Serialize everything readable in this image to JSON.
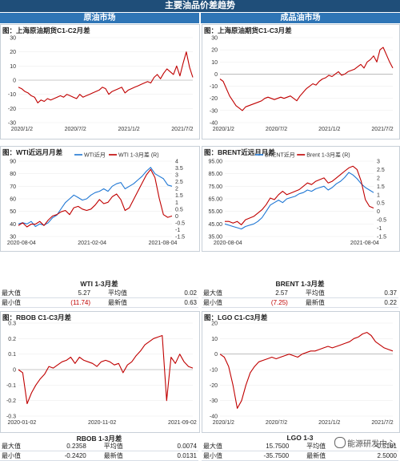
{
  "header": {
    "title": "主要油品价差趋势"
  },
  "sections": {
    "crude": "原油市场",
    "products": "成品油市场"
  },
  "colors": {
    "red": "#c00000",
    "blue": "#1f77d4"
  },
  "chart_data": [
    {
      "id": "sc",
      "type": "line",
      "title": "图：上海原油期货C1-C2月差",
      "xticks": [
        "2020/1/2",
        "2020/7/2",
        "2021/1/2",
        "2021/7/2"
      ],
      "ylim": [
        -30,
        30
      ],
      "yticks": [
        -30,
        -20,
        -10,
        0,
        10,
        20,
        30
      ],
      "series": [
        {
          "color": "#c00000",
          "values": [
            -5,
            -6,
            -8,
            -9,
            -11,
            -12,
            -16,
            -14,
            -15,
            -13,
            -14,
            -13,
            -12,
            -11,
            -12,
            -10,
            -11,
            -12,
            -13,
            -10,
            -12,
            -11,
            -10,
            -9,
            -8,
            -7,
            -5,
            -6,
            -10,
            -8,
            -7,
            -6,
            -5,
            -9,
            -7,
            -6,
            -5,
            -4,
            -3,
            -2,
            -1,
            -2,
            2,
            4,
            1,
            5,
            8,
            6,
            4,
            10,
            3,
            12,
            20,
            9,
            2
          ]
        }
      ]
    },
    {
      "id": "mogas",
      "type": "line",
      "title": "图：上海原油期货C1-C3月差",
      "xticks": [
        "2020/1/2",
        "2020/7/2",
        "2021/1/2",
        "2021/7/2"
      ],
      "ylim": [
        -40,
        30
      ],
      "yticks": [
        -40,
        -30,
        -20,
        -10,
        0,
        10,
        20,
        30
      ],
      "series": [
        {
          "color": "#c00000",
          "values": [
            -4,
            -6,
            -12,
            -18,
            -22,
            -26,
            -28,
            -30,
            -27,
            -26,
            -25,
            -24,
            -23,
            -22,
            -20,
            -19,
            -20,
            -21,
            -20,
            -19,
            -20,
            -19,
            -18,
            -20,
            -22,
            -18,
            -15,
            -12,
            -10,
            -8,
            -9,
            -6,
            -4,
            -3,
            -1,
            -2,
            0,
            2,
            -1,
            0,
            2,
            3,
            4,
            6,
            8,
            5,
            10,
            12,
            15,
            10,
            20,
            22,
            16,
            10,
            5
          ]
        }
      ]
    },
    {
      "id": "wti",
      "type": "line",
      "title": "图：WTI近远月月差",
      "legend": [
        "WTI近月",
        "WTI 1-3月差 (R)"
      ],
      "xticks": [
        "2020-08-04",
        "2021-02-04",
        "2021-08-04"
      ],
      "ylim": [
        30,
        90
      ],
      "yticks": [
        30,
        40,
        50,
        60,
        70,
        80,
        90
      ],
      "ylim_right": [
        -1.5,
        4
      ],
      "yticks_right": [
        "4",
        "3.5",
        "3",
        "2.5",
        "2",
        "1.5",
        "1",
        "0.5",
        "0",
        "-0.5",
        "-1",
        "-1.5"
      ],
      "series": [
        {
          "name": "WTI近月",
          "color": "#1f77d4",
          "axis": "left",
          "values": [
            40,
            41,
            40,
            42,
            38,
            40,
            39,
            41,
            45,
            47,
            52,
            57,
            60,
            63,
            61,
            59,
            60,
            63,
            65,
            66,
            68,
            66,
            70,
            72,
            73,
            68,
            70,
            72,
            75,
            78,
            82,
            85,
            80,
            78,
            76,
            71,
            70
          ]
        },
        {
          "name": "WTI 1-3月差 (R)",
          "color": "#c00000",
          "axis": "right",
          "values": [
            -0.7,
            -0.5,
            -0.8,
            -0.6,
            -0.6,
            -0.4,
            -0.7,
            -0.3,
            0.0,
            0.1,
            0.3,
            0.4,
            0.1,
            0.6,
            0.7,
            0.5,
            0.4,
            0.5,
            0.8,
            1.2,
            0.9,
            1.0,
            1.4,
            1.6,
            1.2,
            0.4,
            0.6,
            1.2,
            1.8,
            2.4,
            3.0,
            3.4,
            2.8,
            1.3,
            0.1,
            -0.1,
            0.0
          ]
        }
      ]
    },
    {
      "id": "brent",
      "type": "line",
      "title": "图：BRENT近远月月差",
      "legend": [
        "BRENT近月",
        "Brent 1-3月差 (R)"
      ],
      "xticks": [
        "2020-08-04",
        "2021-08-04"
      ],
      "ylim": [
        35,
        95
      ],
      "yticks": [
        "95.00",
        "85.00",
        "75.00",
        "65.00",
        "55.00",
        "45.00",
        "35.00"
      ],
      "ylim_right": [
        -1.5,
        3
      ],
      "yticks_right": [
        "3",
        "2.5",
        "2",
        "1.5",
        "1",
        "0.5",
        "0",
        "-0.5",
        "-1",
        "-1.5"
      ],
      "series": [
        {
          "name": "BRENT近月",
          "color": "#1f77d4",
          "axis": "left",
          "values": [
            45,
            44,
            43,
            42,
            41,
            43,
            44,
            45,
            47,
            50,
            55,
            60,
            62,
            64,
            62,
            65,
            66,
            67,
            69,
            70,
            72,
            71,
            73,
            74,
            75,
            72,
            74,
            77,
            79,
            82,
            86,
            84,
            81,
            77,
            74,
            72,
            70
          ]
        },
        {
          "name": "Brent 1-3月差 (R)",
          "color": "#c00000",
          "axis": "right",
          "values": [
            -0.6,
            -0.6,
            -0.7,
            -0.6,
            -0.8,
            -0.5,
            -0.4,
            -0.3,
            -0.1,
            0.1,
            0.4,
            0.8,
            0.7,
            1.0,
            1.2,
            1.0,
            1.1,
            1.2,
            1.3,
            1.5,
            1.7,
            1.6,
            1.8,
            1.9,
            2.0,
            1.7,
            1.8,
            2.0,
            2.2,
            2.4,
            2.6,
            2.7,
            2.5,
            1.8,
            0.7,
            0.3,
            0.2
          ]
        }
      ]
    },
    {
      "id": "rbob",
      "type": "line",
      "title": "图：RBOB C1-C3月差",
      "xticks": [
        "2020-01-02",
        "2020-11-02",
        "2021-09-02"
      ],
      "ylim": [
        -0.3,
        0.3
      ],
      "yticks": [
        "0.3",
        "0.2",
        "0.1",
        "0",
        "-0.1",
        "-0.2",
        "-0.3"
      ],
      "series": [
        {
          "color": "#c00000",
          "values": [
            0.0,
            -0.02,
            -0.22,
            -0.15,
            -0.1,
            -0.06,
            -0.03,
            0.02,
            0.01,
            0.03,
            0.05,
            0.06,
            0.08,
            0.04,
            0.08,
            0.06,
            0.05,
            0.04,
            0.02,
            0.05,
            0.06,
            0.05,
            0.03,
            0.04,
            -0.02,
            0.03,
            0.05,
            0.09,
            0.12,
            0.16,
            0.18,
            0.2,
            0.21,
            0.22,
            -0.2,
            0.08,
            0.04,
            0.1,
            0.05,
            0.02,
            0.01
          ]
        }
      ]
    },
    {
      "id": "lgo",
      "type": "line",
      "title": "图：LGO C1-C3月差",
      "xticks": [
        "2020/1/2",
        "2020/7/2",
        "2021/1/2",
        "2021/7/2"
      ],
      "ylim": [
        -40,
        20
      ],
      "yticks": [
        -40,
        -30,
        -20,
        -10,
        0,
        10,
        20
      ],
      "series": [
        {
          "color": "#c00000",
          "values": [
            0,
            -2,
            -8,
            -20,
            -35,
            -30,
            -20,
            -12,
            -8,
            -5,
            -4,
            -3,
            -2,
            -3,
            -2,
            -1,
            0,
            -1,
            -2,
            0,
            1,
            2,
            2,
            3,
            4,
            5,
            4,
            5,
            6,
            7,
            8,
            10,
            11,
            13,
            14,
            12,
            8,
            6,
            4,
            3,
            2
          ]
        }
      ]
    }
  ],
  "stats": {
    "wti": {
      "title": "WTI 1-3月差",
      "max_label": "最大值",
      "max": "5.27",
      "avg_label": "平均值",
      "avg": "0.02",
      "min_label": "最小值",
      "min": "(11.74)",
      "latest_label": "最新值",
      "latest": "0.63"
    },
    "brent": {
      "title": "BRENT 1-3月差",
      "max_label": "最大值",
      "max": "2.57",
      "avg_label": "平均值",
      "avg": "0.37",
      "min_label": "最小值",
      "min": "(7.25)",
      "latest_label": "最新值",
      "latest": "0.22"
    },
    "rbob": {
      "title": "RBOB 1-3月差",
      "max_label": "最大值",
      "max": "0.2358",
      "avg_label": "平均值",
      "avg": "0.0074",
      "min_label": "最小值",
      "min": "-0.2420",
      "latest_label": "最新值",
      "latest": "0.0131"
    },
    "lgo": {
      "title": "LGO 1-3",
      "max_label": "最大值",
      "max": "15.7500",
      "avg_label": "平均值",
      "avg": "-0.5181",
      "min_label": "最小值",
      "min": "-35.7500",
      "latest_label": "最新值",
      "latest": "2.5000"
    }
  },
  "watermark": "能源研发中心"
}
